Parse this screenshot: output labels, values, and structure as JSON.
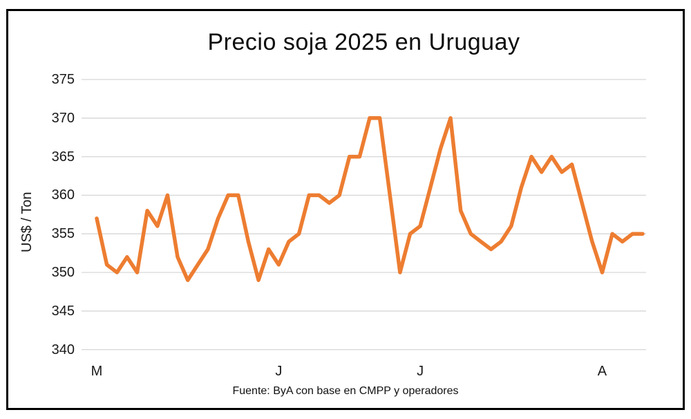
{
  "chart": {
    "title": "Precio soja 2025 en Uruguay",
    "y_axis_title": "US$ / Ton",
    "source": "Fuente: ByA con base en CMPP y operadores"
  },
  "colors": {
    "line": "#ED7D31",
    "gridline": "#D6D6D6",
    "text": "#1A1A1A",
    "frame_border": "#000000"
  },
  "chart_data": {
    "type": "line",
    "title": "Precio soja 2025 en Uruguay",
    "xlabel": "",
    "ylabel": "US$ / Ton",
    "ylim": [
      340,
      375
    ],
    "y_ticks": [
      375,
      370,
      365,
      360,
      355,
      350,
      345,
      340
    ],
    "x_tick_labels": [
      {
        "label": "M",
        "index": 0
      },
      {
        "label": "J",
        "index": 18
      },
      {
        "label": "J",
        "index": 32
      },
      {
        "label": "A",
        "index": 50
      }
    ],
    "grid": true,
    "legend": false,
    "series": [
      {
        "name": "Precio soja (US$/Ton)",
        "color": "#ED7D31",
        "values": [
          357,
          351,
          350,
          352,
          350,
          358,
          356,
          360,
          352,
          349,
          351,
          353,
          357,
          360,
          360,
          354,
          349,
          353,
          351,
          354,
          355,
          360,
          360,
          359,
          360,
          365,
          365,
          370,
          370,
          360,
          350,
          355,
          356,
          361,
          366,
          370,
          358,
          355,
          354,
          353,
          354,
          356,
          361,
          365,
          363,
          365,
          363,
          364,
          359,
          354,
          350,
          355,
          354,
          355,
          355
        ]
      }
    ]
  }
}
